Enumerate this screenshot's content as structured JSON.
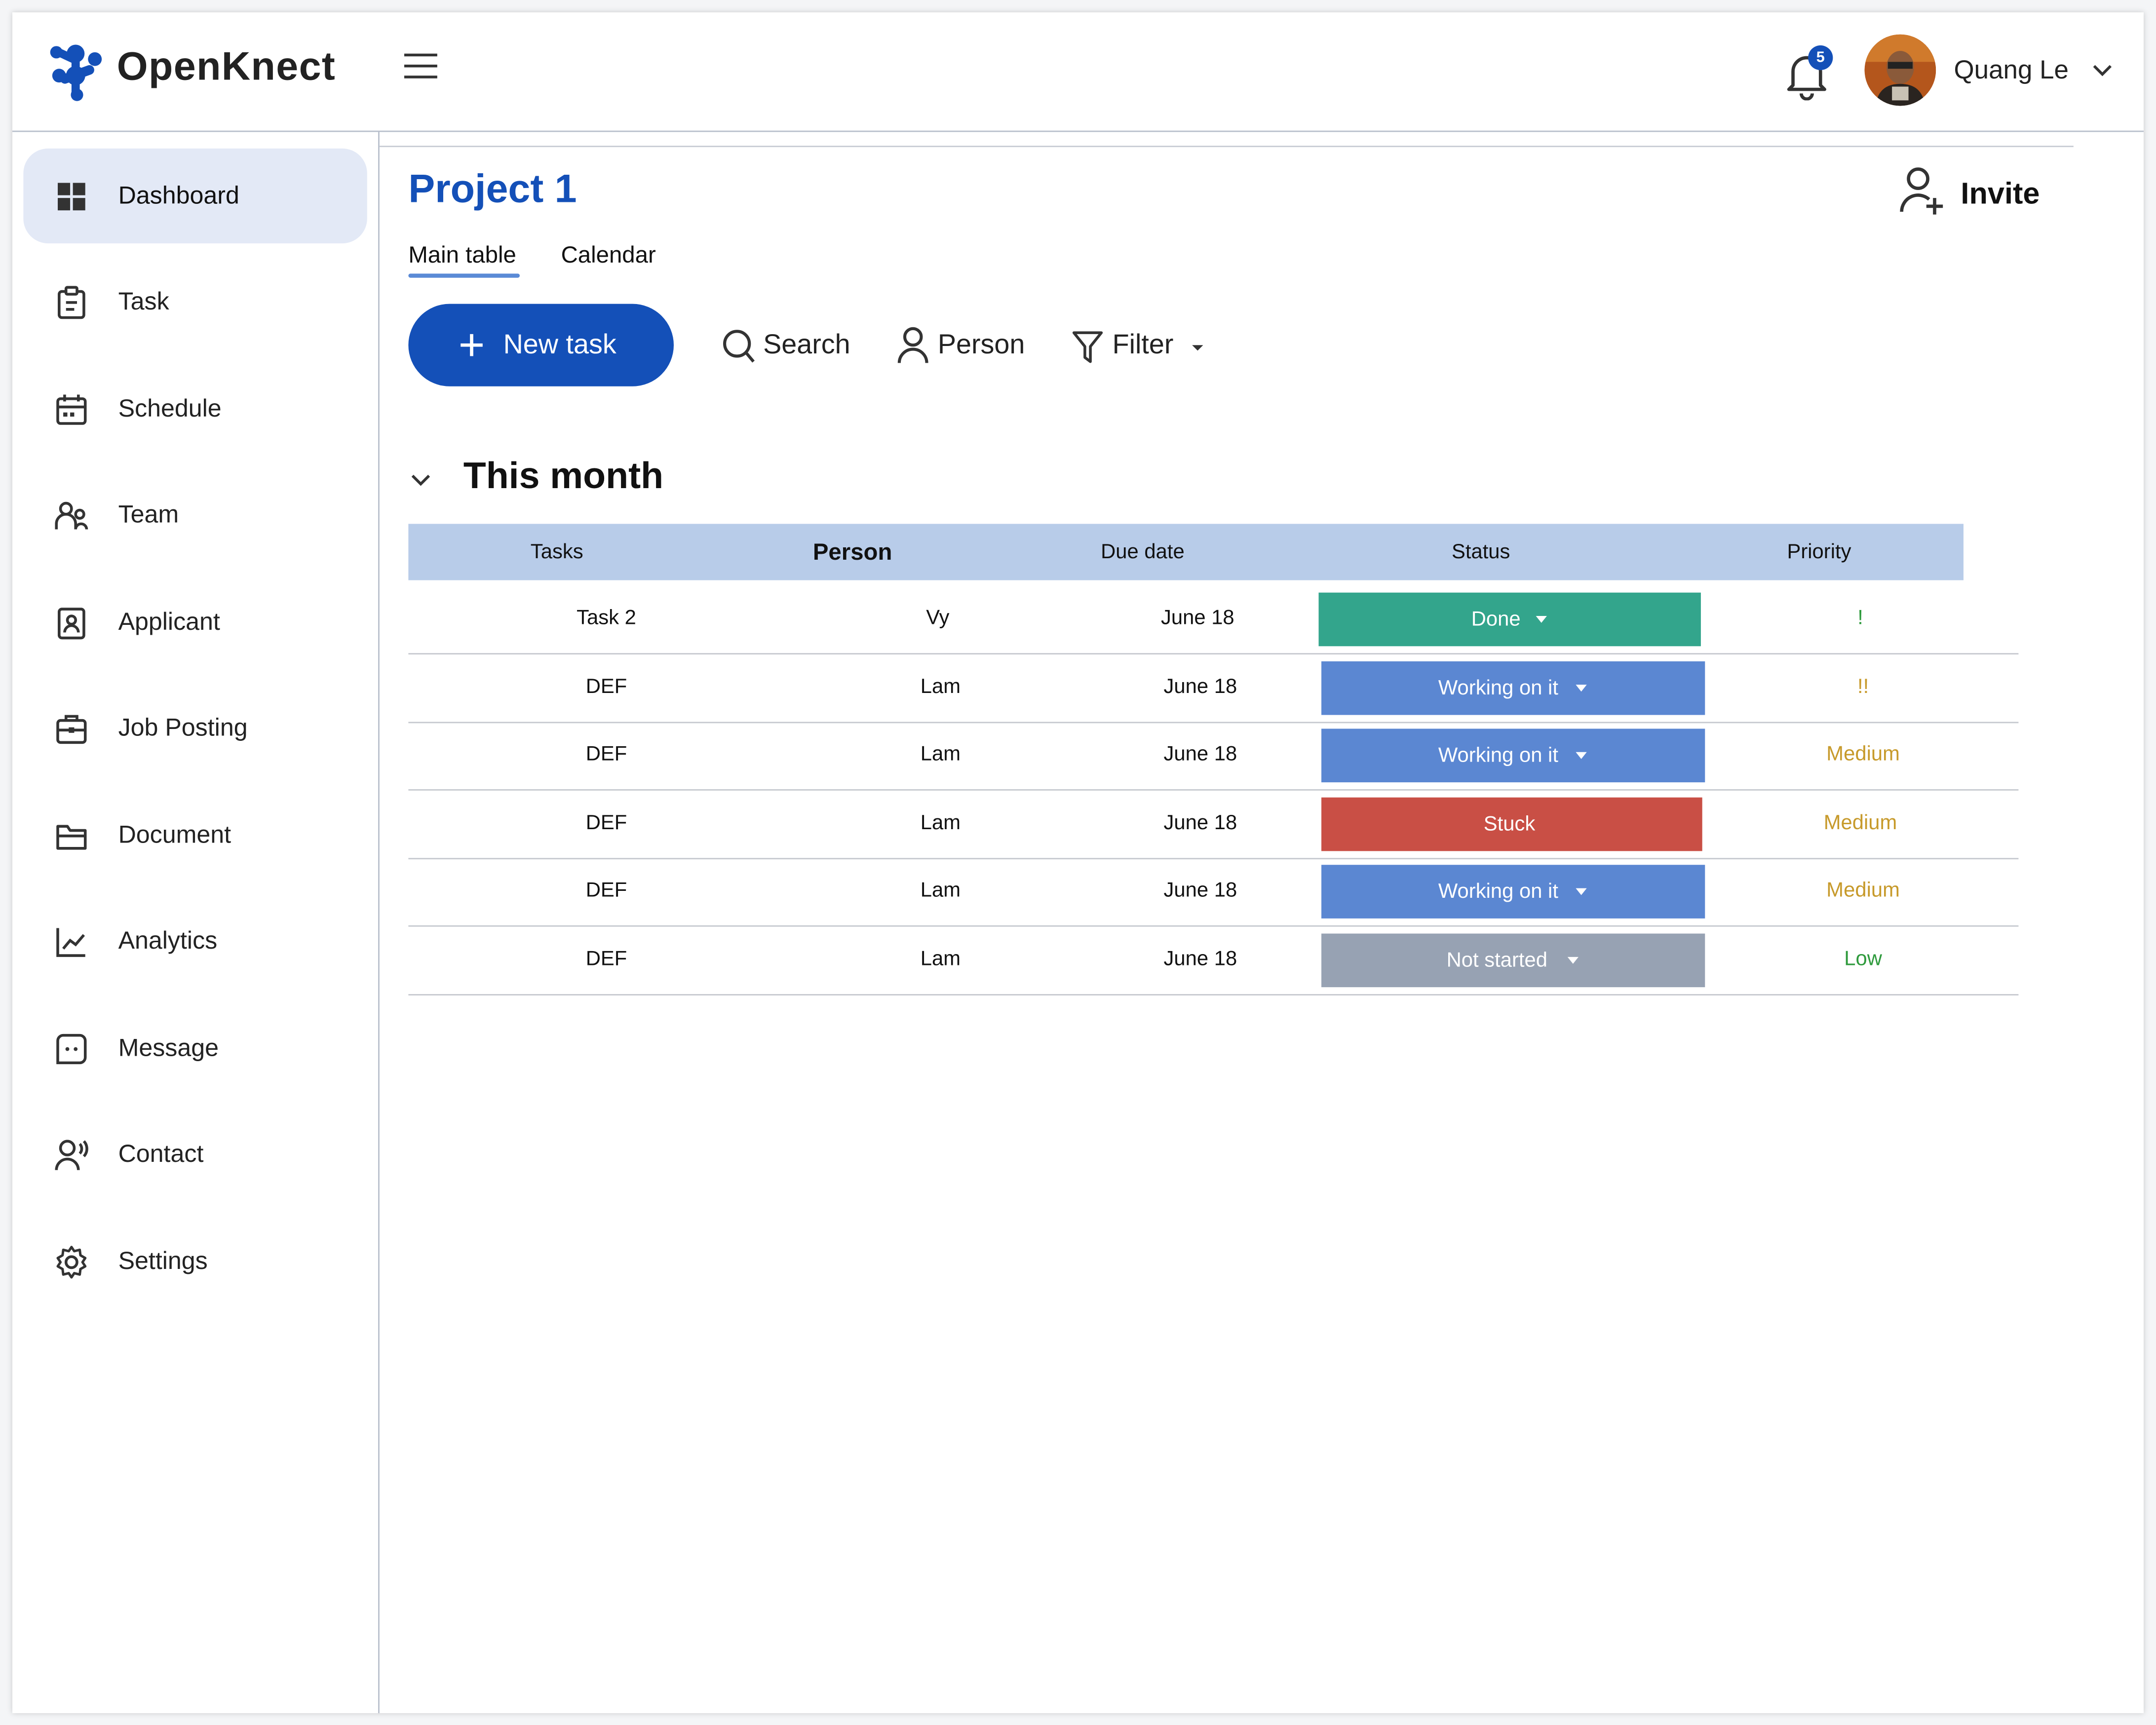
{
  "brand": {
    "name": "OpenKnect"
  },
  "header": {
    "notification_count": "5",
    "user_name": "Quang Le"
  },
  "sidebar": {
    "items": [
      {
        "label": "Dashboard",
        "icon": "dashboard-icon",
        "active": true
      },
      {
        "label": "Task",
        "icon": "clipboard-icon"
      },
      {
        "label": "Schedule",
        "icon": "calendar-icon"
      },
      {
        "label": "Team",
        "icon": "team-icon"
      },
      {
        "label": "Applicant",
        "icon": "applicant-icon"
      },
      {
        "label": "Job Posting",
        "icon": "briefcase-icon"
      },
      {
        "label": "Document",
        "icon": "folder-icon"
      },
      {
        "label": "Analytics",
        "icon": "chart-line-icon"
      },
      {
        "label": "Message",
        "icon": "message-icon"
      },
      {
        "label": "Contact",
        "icon": "contact-icon"
      },
      {
        "label": "Settings",
        "icon": "gear-icon"
      }
    ]
  },
  "main": {
    "title": "Project 1",
    "invite_label": "Invite",
    "tabs": [
      "Main table",
      "Calendar"
    ],
    "new_task_label": "New task",
    "toolbar": {
      "search": "Search",
      "person": "Person",
      "filter": "Filter"
    },
    "section_title": "This month",
    "table": {
      "headers": [
        "Tasks",
        "Person",
        "Due date",
        "Status",
        "Priority"
      ],
      "rows": [
        {
          "task": "Task 2",
          "person": "Vy",
          "due": "June 18",
          "status": "Done",
          "status_dropdown": true,
          "priority": "!"
        },
        {
          "task": "DEF",
          "person": "Lam",
          "due": "June 18",
          "status": "Working on it",
          "status_dropdown": true,
          "priority": "!!"
        },
        {
          "task": "DEF",
          "person": "Lam",
          "due": "June 18",
          "status": "Working on it",
          "status_dropdown": true,
          "priority": "Medium"
        },
        {
          "task": "DEF",
          "person": "Lam",
          "due": "June 18",
          "status": "Stuck",
          "status_dropdown": false,
          "priority": "Medium"
        },
        {
          "task": "DEF",
          "person": "Lam",
          "due": "June 18",
          "status": "Working on it",
          "status_dropdown": true,
          "priority": "Medium"
        },
        {
          "task": "DEF",
          "person": "Lam",
          "due": "June 18",
          "status": "Not started",
          "status_dropdown": true,
          "priority": "Low"
        }
      ]
    }
  },
  "colors": {
    "brand_blue": "#1450b8",
    "status_done": "#33a58c",
    "status_working": "#5b87d2",
    "status_stuck": "#c94f45",
    "status_not_started": "#97a2b3",
    "priority_high": "#2e9a3c",
    "priority_medium": "#c79a2b",
    "priority_low": "#2e9a3c",
    "header_row": "#b8cce9",
    "active_nav": "#e3e9f6"
  }
}
